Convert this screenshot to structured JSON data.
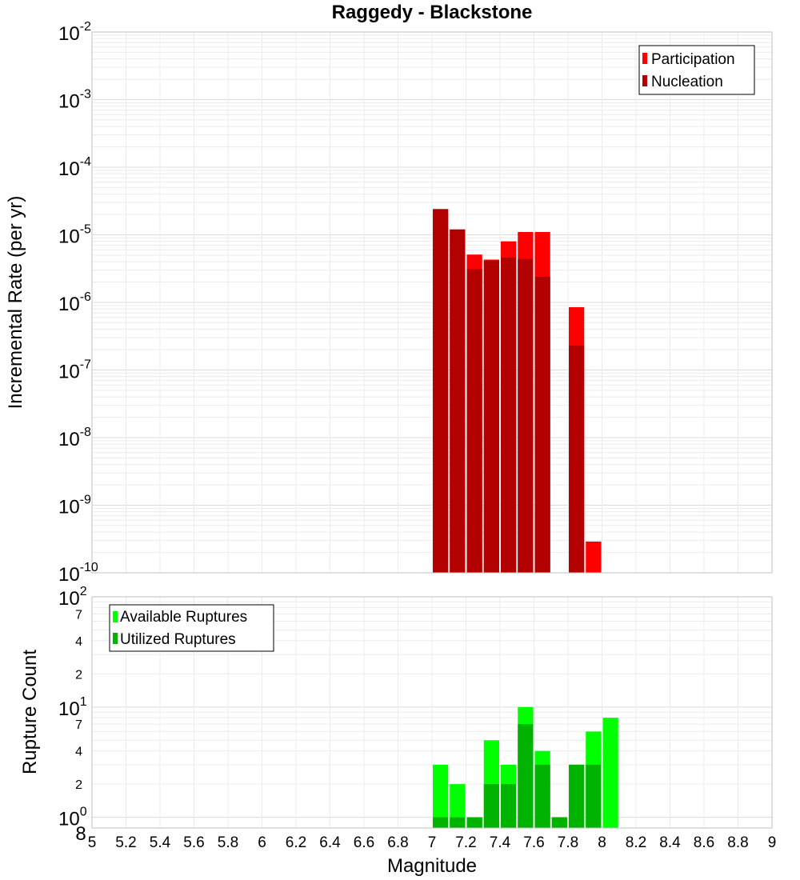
{
  "chart_data": [
    {
      "type": "bar",
      "title": "Raggedy - Blackstone",
      "xlabel": "",
      "ylabel": "Incremental Rate (per yr)",
      "yscale": "log",
      "ylim_exp": [
        -10,
        -2
      ],
      "y_tick_base": "10",
      "y_tick_exponents": [
        "-2",
        "-3",
        "-4",
        "-5",
        "-6",
        "-7",
        "-8",
        "-9",
        "-10"
      ],
      "legend_position": "top-right",
      "grid": true,
      "series": [
        {
          "name": "Participation",
          "color": "#ff0000",
          "x": [
            7.05,
            7.15,
            7.25,
            7.35,
            7.45,
            7.55,
            7.65,
            7.85,
            7.95
          ],
          "values": [
            2.4e-05,
            1.2e-05,
            5.1e-06,
            4.3e-06,
            8e-06,
            1.1e-05,
            1.1e-05,
            8.5e-07,
            2.9e-10
          ]
        },
        {
          "name": "Nucleation",
          "color": "#b30000",
          "x": [
            7.05,
            7.15,
            7.25,
            7.35,
            7.45,
            7.55,
            7.65,
            7.85
          ],
          "values": [
            2.4e-05,
            1.2e-05,
            3.1e-06,
            4.1e-06,
            4.6e-06,
            4.4e-06,
            2.4e-06,
            2.3e-07
          ]
        }
      ]
    },
    {
      "type": "bar",
      "xlabel": "Magnitude",
      "ylabel": "Rupture Count",
      "yscale": "log",
      "ylim": [
        0.8,
        100
      ],
      "xlim": [
        5,
        9
      ],
      "x_ticks": [
        "5",
        "5.2",
        "5.4",
        "5.6",
        "5.8",
        "6",
        "6.2",
        "6.4",
        "6.6",
        "6.8",
        "7",
        "7.2",
        "7.4",
        "7.6",
        "7.8",
        "8",
        "8.2",
        "8.4",
        "8.6",
        "8.8",
        "9"
      ],
      "y_major_ticks": [
        {
          "base": "10",
          "exp": "2"
        },
        {
          "base": "10",
          "exp": "1"
        },
        {
          "base": "10",
          "exp": "0"
        }
      ],
      "y_minor_labels": [
        "7",
        "4",
        "2",
        "7",
        "4",
        "2"
      ],
      "y_bottom_label": "8",
      "legend_position": "top-left",
      "grid": true,
      "series": [
        {
          "name": "Available Ruptures",
          "color": "#00ff00",
          "x": [
            7.05,
            7.15,
            7.25,
            7.35,
            7.45,
            7.55,
            7.65,
            7.75,
            7.85,
            7.95,
            8.05
          ],
          "values": [
            3,
            2,
            1,
            5,
            3,
            10,
            4,
            1,
            3,
            6,
            8
          ]
        },
        {
          "name": "Utilized Ruptures",
          "color": "#00b300",
          "x": [
            7.05,
            7.15,
            7.25,
            7.35,
            7.45,
            7.55,
            7.65,
            7.75,
            7.85,
            7.95
          ],
          "values": [
            1,
            1,
            1,
            2,
            2,
            7,
            3,
            1,
            3,
            3
          ]
        }
      ]
    }
  ]
}
